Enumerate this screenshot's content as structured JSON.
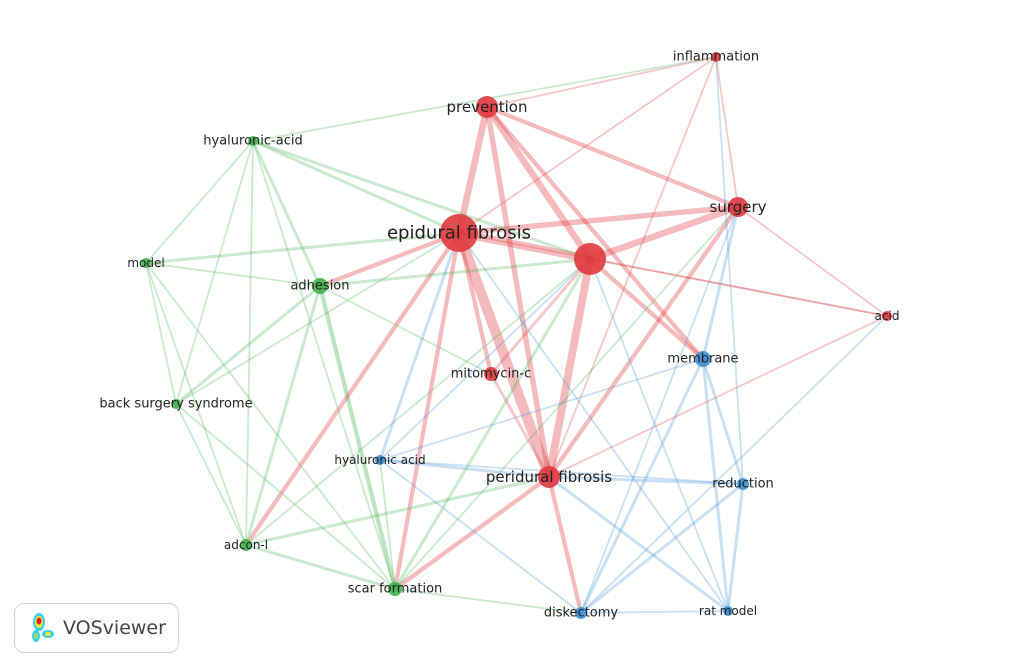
{
  "clusters": {
    "1": "#e0383e",
    "2": "#3fb34a",
    "3": "#3d8fd6"
  },
  "nodes": [
    {
      "label": "inflammation",
      "cluster": 1
    },
    {
      "label": "prevention",
      "cluster": 1
    },
    {
      "label": "hyaluronic-acid",
      "cluster": 2
    },
    {
      "label": "surgery",
      "cluster": 1
    },
    {
      "label": "epidural fibrosis",
      "cluster": 1
    },
    {
      "label": "",
      "cluster": 1
    },
    {
      "label": "model",
      "cluster": 2
    },
    {
      "label": "adhesion",
      "cluster": 2
    },
    {
      "label": "acid",
      "cluster": 1
    },
    {
      "label": "membrane",
      "cluster": 3
    },
    {
      "label": "mitomycin-c",
      "cluster": 1
    },
    {
      "label": "back surgery syndrome",
      "cluster": 2
    },
    {
      "label": "hyaluronic acid",
      "cluster": 3
    },
    {
      "label": "peridural fibrosis",
      "cluster": 1
    },
    {
      "label": "reduction",
      "cluster": 3
    },
    {
      "label": "adcon-l",
      "cluster": 2
    },
    {
      "label": "scar formation",
      "cluster": 2
    },
    {
      "label": "diskectomy",
      "cluster": 3
    },
    {
      "label": "rat model",
      "cluster": 3
    }
  ],
  "links": [
    [
      4,
      13,
      8
    ],
    [
      4,
      5,
      6
    ],
    [
      4,
      1,
      5
    ],
    [
      1,
      5,
      5
    ],
    [
      5,
      13,
      6
    ],
    [
      4,
      3,
      4
    ],
    [
      5,
      3,
      5
    ],
    [
      1,
      3,
      3
    ],
    [
      4,
      10,
      3
    ],
    [
      1,
      13,
      4
    ],
    [
      3,
      13,
      3
    ],
    [
      5,
      9,
      3
    ],
    [
      1,
      9,
      3
    ],
    [
      4,
      7,
      3
    ],
    [
      7,
      16,
      3
    ],
    [
      4,
      16,
      3
    ],
    [
      4,
      15,
      3
    ],
    [
      4,
      6,
      2
    ],
    [
      2,
      4,
      2
    ],
    [
      2,
      5,
      2
    ],
    [
      7,
      5,
      2
    ],
    [
      13,
      17,
      3
    ],
    [
      13,
      14,
      2
    ],
    [
      13,
      16,
      3
    ],
    [
      13,
      15,
      2
    ],
    [
      13,
      12,
      2
    ],
    [
      9,
      14,
      2
    ],
    [
      9,
      17,
      2
    ],
    [
      9,
      18,
      2
    ],
    [
      14,
      18,
      2
    ],
    [
      14,
      17,
      2
    ],
    [
      17,
      18,
      1
    ],
    [
      0,
      1,
      1
    ],
    [
      0,
      3,
      1
    ],
    [
      0,
      4,
      1
    ],
    [
      0,
      2,
      1
    ],
    [
      0,
      13,
      1
    ],
    [
      0,
      14,
      1
    ],
    [
      8,
      4,
      1
    ],
    [
      8,
      5,
      1
    ],
    [
      8,
      3,
      1
    ],
    [
      8,
      13,
      1
    ],
    [
      8,
      17,
      1
    ],
    [
      6,
      7,
      1
    ],
    [
      6,
      11,
      1
    ],
    [
      6,
      15,
      1
    ],
    [
      6,
      16,
      1
    ],
    [
      6,
      2,
      1
    ],
    [
      2,
      7,
      2
    ],
    [
      2,
      11,
      1
    ],
    [
      2,
      16,
      1
    ],
    [
      2,
      15,
      1
    ],
    [
      11,
      7,
      2
    ],
    [
      11,
      15,
      1
    ],
    [
      11,
      16,
      1
    ],
    [
      11,
      4,
      1
    ],
    [
      15,
      16,
      2
    ],
    [
      15,
      7,
      2
    ],
    [
      15,
      5,
      1
    ],
    [
      16,
      5,
      2
    ],
    [
      16,
      17,
      1
    ],
    [
      16,
      12,
      1
    ],
    [
      12,
      4,
      2
    ],
    [
      12,
      5,
      1
    ],
    [
      12,
      9,
      1
    ],
    [
      12,
      17,
      1
    ],
    [
      12,
      14,
      1
    ],
    [
      10,
      13,
      2
    ],
    [
      10,
      7,
      1
    ],
    [
      10,
      5,
      2
    ],
    [
      18,
      4,
      1
    ],
    [
      18,
      5,
      1
    ],
    [
      18,
      13,
      2
    ],
    [
      3,
      9,
      2
    ],
    [
      3,
      17,
      1
    ],
    [
      3,
      16,
      1
    ]
  ],
  "logo": {
    "text": "VOSviewer"
  }
}
